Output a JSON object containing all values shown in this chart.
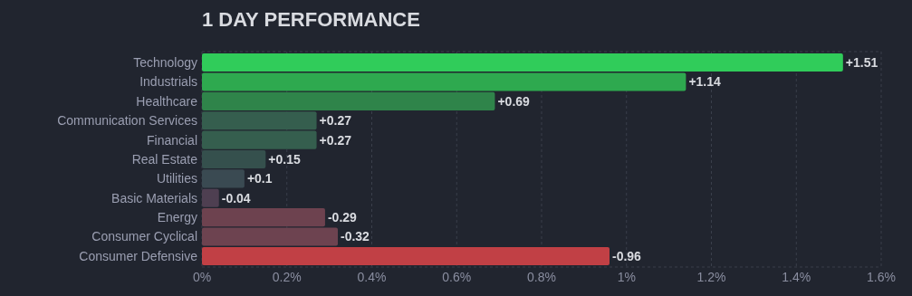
{
  "chart_data": {
    "type": "bar",
    "orientation": "horizontal",
    "title": "1 DAY PERFORMANCE",
    "categories": [
      "Technology",
      "Industrials",
      "Healthcare",
      "Communication Services",
      "Financial",
      "Real Estate",
      "Utilities",
      "Basic Materials",
      "Energy",
      "Consumer Cyclical",
      "Consumer Defensive"
    ],
    "values": [
      1.51,
      1.14,
      0.69,
      0.27,
      0.27,
      0.15,
      0.1,
      -0.04,
      -0.29,
      -0.32,
      -0.96
    ],
    "base": [
      0,
      0,
      0,
      0,
      0,
      0,
      0,
      0.04,
      0.29,
      0.32,
      0.96
    ],
    "value_labels": [
      "+1.51",
      "+1.14",
      "+0.69",
      "+0.27",
      "+0.27",
      "+0.15",
      "+0.1",
      "-0.04",
      "-0.29",
      "-0.32",
      "-0.96"
    ],
    "colors": [
      "#30cc5a",
      "#2ea94f",
      "#2f844a",
      "#355e4e",
      "#355e4e",
      "#35504d",
      "#3a4a52",
      "#4e3f51",
      "#6d424f",
      "#6d4350",
      "#c14045"
    ],
    "xlim": [
      0,
      1.6
    ],
    "xticks": [
      {
        "value": 0,
        "label": "0%"
      },
      {
        "value": 0.2,
        "label": "0.2%"
      },
      {
        "value": 0.4,
        "label": "0.4%"
      },
      {
        "value": 0.6,
        "label": "0.6%"
      },
      {
        "value": 0.8,
        "label": "0.8%"
      },
      {
        "value": 1,
        "label": "1%"
      },
      {
        "value": 1.2,
        "label": "1.2%"
      },
      {
        "value": 1.4,
        "label": "1.4%"
      },
      {
        "value": 1.6,
        "label": "1.6%"
      }
    ],
    "grid": "x"
  }
}
